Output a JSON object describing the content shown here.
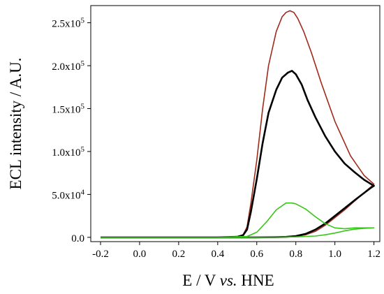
{
  "chart_data": {
    "type": "line",
    "xlabel": {
      "pre": "E / V ",
      "italic": "vs.",
      "post": " HNE"
    },
    "ylabel": "ECL intensity / A.U.",
    "xlim": [
      -0.25,
      1.23
    ],
    "ylim": [
      -5000,
      270000
    ],
    "x_ticks": [
      -0.2,
      0.0,
      0.2,
      0.4,
      0.6,
      0.8,
      1.0,
      1.2
    ],
    "x_tick_labels": [
      "-0.2",
      "0.0",
      "0.2",
      "0.4",
      "0.6",
      "0.8",
      "1.0",
      "1.2"
    ],
    "y_ticks": [
      {
        "value": 0,
        "mantissa": "0.0",
        "exp": ""
      },
      {
        "value": 50000,
        "mantissa": "5.0x10",
        "exp": "4"
      },
      {
        "value": 100000,
        "mantissa": "1.0x10",
        "exp": "5"
      },
      {
        "value": 150000,
        "mantissa": "1.5x10",
        "exp": "5"
      },
      {
        "value": 200000,
        "mantissa": "2.0x10",
        "exp": "5"
      },
      {
        "value": 250000,
        "mantissa": "2.5x10",
        "exp": "5"
      }
    ],
    "grid": false,
    "series": [
      {
        "color": "#a0291a",
        "width": 1.6,
        "x": [
          -0.2,
          0.0,
          0.2,
          0.4,
          0.5,
          0.53,
          0.55,
          0.57,
          0.6,
          0.63,
          0.66,
          0.7,
          0.73,
          0.75,
          0.77,
          0.79,
          0.81,
          0.84,
          0.88,
          0.93,
          1.0,
          1.08,
          1.15,
          1.2,
          1.18,
          1.14,
          1.1,
          1.05,
          1.0,
          0.95,
          0.9,
          0.85,
          0.8,
          0.75,
          0.7,
          0.65,
          0.6,
          0.55,
          0.4,
          0.2,
          0.0,
          -0.2
        ],
        "y": [
          0,
          0,
          0,
          0,
          800,
          3000,
          12000,
          40000,
          90000,
          150000,
          200000,
          240000,
          257000,
          262000,
          264000,
          262000,
          255000,
          240000,
          215000,
          180000,
          135000,
          95000,
          72000,
          62000,
          58000,
          50000,
          42000,
          32000,
          23000,
          14000,
          7000,
          3000,
          1000,
          500,
          200,
          100,
          0,
          0,
          0,
          0,
          0,
          0
        ]
      },
      {
        "color": "#000000",
        "width": 2.6,
        "x": [
          -0.2,
          0.0,
          0.2,
          0.4,
          0.5,
          0.53,
          0.55,
          0.57,
          0.6,
          0.63,
          0.66,
          0.7,
          0.73,
          0.76,
          0.78,
          0.8,
          0.83,
          0.86,
          0.9,
          0.95,
          1.0,
          1.05,
          1.1,
          1.15,
          1.2,
          1.18,
          1.14,
          1.1,
          1.05,
          1.0,
          0.95,
          0.9,
          0.85,
          0.8,
          0.75,
          0.7,
          0.6,
          0.55,
          0.4,
          0.2,
          0.0,
          -0.2
        ],
        "y": [
          0,
          0,
          0,
          0,
          600,
          2500,
          9000,
          30000,
          68000,
          110000,
          145000,
          172000,
          186000,
          192000,
          194000,
          190000,
          178000,
          160000,
          140000,
          118000,
          100000,
          86000,
          76000,
          67000,
          60000,
          57000,
          50000,
          43000,
          34000,
          25000,
          16000,
          9000,
          4000,
          1500,
          500,
          200,
          0,
          0,
          0,
          0,
          0,
          0
        ]
      },
      {
        "color": "#35c617",
        "width": 1.6,
        "x": [
          -0.2,
          0.0,
          0.2,
          0.4,
          0.55,
          0.6,
          0.65,
          0.7,
          0.75,
          0.78,
          0.8,
          0.85,
          0.9,
          0.95,
          1.0,
          1.05,
          1.1,
          1.15,
          1.2,
          1.15,
          1.1,
          1.05,
          1.0,
          0.95,
          0.9,
          0.8,
          0.7,
          0.6,
          0.4,
          0.2,
          0.0,
          -0.2
        ],
        "y": [
          0,
          0,
          0,
          0,
          1000,
          6000,
          18000,
          32000,
          40000,
          40000,
          39000,
          33000,
          24000,
          16000,
          11000,
          10000,
          11000,
          11000,
          11000,
          10500,
          9500,
          7500,
          5000,
          3000,
          1500,
          500,
          200,
          0,
          0,
          0,
          0,
          0
        ]
      }
    ]
  }
}
